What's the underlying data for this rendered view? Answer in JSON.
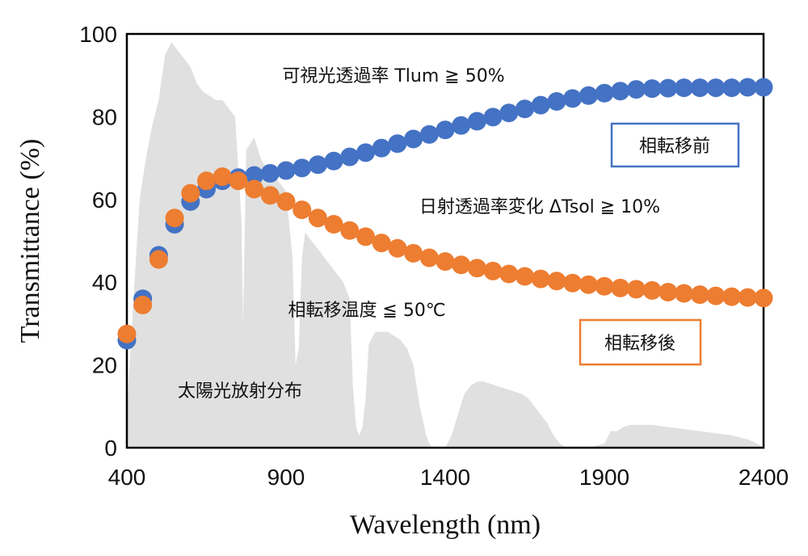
{
  "chart_data": {
    "type": "scatter",
    "xlabel": "Wavelength (nm)",
    "ylabel": "Transmittance (%)",
    "xlim": [
      400,
      2400
    ],
    "ylim": [
      0,
      100
    ],
    "x_ticks": [
      "400",
      "900",
      "1400",
      "1900",
      "2400"
    ],
    "y_ticks": [
      "0",
      "20",
      "40",
      "60",
      "80",
      "100"
    ],
    "grid": false,
    "colors": {
      "before": "#4472C4",
      "after": "#ED7D31",
      "solar": "#E0E0E0"
    },
    "series": [
      {
        "name": "相転移前",
        "x": [
          400,
          450,
          500,
          550,
          600,
          650,
          700,
          750,
          800,
          850,
          900,
          950,
          1000,
          1050,
          1100,
          1150,
          1200,
          1250,
          1300,
          1350,
          1400,
          1450,
          1500,
          1550,
          1600,
          1650,
          1700,
          1750,
          1800,
          1850,
          1900,
          1950,
          2000,
          2050,
          2100,
          2150,
          2200,
          2250,
          2300,
          2350,
          2400
        ],
        "values": [
          26,
          36,
          46.5,
          54,
          59.5,
          62.5,
          64.5,
          65.3,
          65.8,
          66.3,
          67,
          67.6,
          68.4,
          69.3,
          70.3,
          71.3,
          72.4,
          73.5,
          74.6,
          75.7,
          76.8,
          77.9,
          78.9,
          79.9,
          80.9,
          81.9,
          82.8,
          83.7,
          84.4,
          85.1,
          85.7,
          86.2,
          86.6,
          86.8,
          86.9,
          87,
          87,
          87,
          87,
          87.1,
          87.1
        ]
      },
      {
        "name": "相転移後",
        "x": [
          400,
          450,
          500,
          550,
          600,
          650,
          700,
          750,
          800,
          850,
          900,
          950,
          1000,
          1050,
          1100,
          1150,
          1200,
          1250,
          1300,
          1350,
          1400,
          1450,
          1500,
          1550,
          1600,
          1650,
          1700,
          1750,
          1800,
          1850,
          1900,
          1950,
          2000,
          2050,
          2100,
          2150,
          2200,
          2250,
          2300,
          2350,
          2400
        ],
        "values": [
          27.5,
          34.5,
          45.5,
          55.5,
          61.5,
          64.5,
          65.5,
          64.5,
          62.5,
          61,
          59.5,
          57.5,
          55.5,
          54,
          52.5,
          51,
          49.5,
          48.2,
          47,
          45.9,
          45,
          44.2,
          43.4,
          42.7,
          42,
          41.4,
          40.8,
          40.3,
          39.8,
          39.4,
          39,
          38.6,
          38.3,
          38,
          37.6,
          37.3,
          37,
          36.7,
          36.5,
          36.3,
          36.2
        ]
      }
    ],
    "solar_spectrum": {
      "name": "太陽光放射分布",
      "x": [
        400,
        420,
        440,
        460,
        480,
        500,
        520,
        540,
        560,
        580,
        600,
        620,
        640,
        660,
        680,
        700,
        720,
        740,
        760,
        765,
        775,
        800,
        820,
        840,
        860,
        880,
        900,
        920,
        930,
        940,
        950,
        960,
        980,
        1000,
        1020,
        1040,
        1060,
        1080,
        1100,
        1110,
        1120,
        1130,
        1140,
        1150,
        1160,
        1180,
        1200,
        1220,
        1240,
        1260,
        1280,
        1300,
        1320,
        1340,
        1350,
        1360,
        1380,
        1400,
        1420,
        1440,
        1460,
        1480,
        1500,
        1520,
        1540,
        1560,
        1580,
        1600,
        1620,
        1640,
        1660,
        1680,
        1700,
        1720,
        1740,
        1760,
        1780,
        1800,
        1850,
        1900,
        1920,
        1940,
        1960,
        1980,
        2000,
        2050,
        2100,
        2150,
        2200,
        2250,
        2300,
        2350,
        2380,
        2400
      ],
      "values": [
        8,
        35,
        60,
        70,
        78,
        84,
        95,
        98,
        96,
        94,
        92,
        88,
        86,
        85,
        84,
        84,
        82,
        80,
        55,
        30,
        72,
        75,
        70,
        67,
        66,
        64,
        62,
        46,
        20,
        24,
        46,
        52,
        50,
        48,
        46,
        44,
        42,
        40,
        36,
        15,
        5,
        3,
        5,
        12,
        25,
        28,
        28,
        28,
        27,
        26,
        24,
        20,
        10,
        3,
        1,
        0,
        0,
        0,
        3,
        8,
        13,
        15,
        16,
        16,
        15.5,
        15,
        14.5,
        14,
        13.5,
        13,
        12,
        10,
        8,
        6,
        3,
        1,
        0,
        0,
        0,
        1,
        4,
        4,
        5,
        5.5,
        5.5,
        5.5,
        5,
        4.5,
        4,
        3.5,
        3,
        2,
        1,
        0
      ]
    },
    "annotations": [
      "可視光透過率 Tlum ≧ 50%",
      "日射透過率変化 ΔTsol ≧ 10%",
      "相転移温度 ≦ 50℃",
      "太陽光放射分布"
    ],
    "legend": {
      "before": "相転移前",
      "after": "相転移後",
      "placement": "right"
    }
  }
}
